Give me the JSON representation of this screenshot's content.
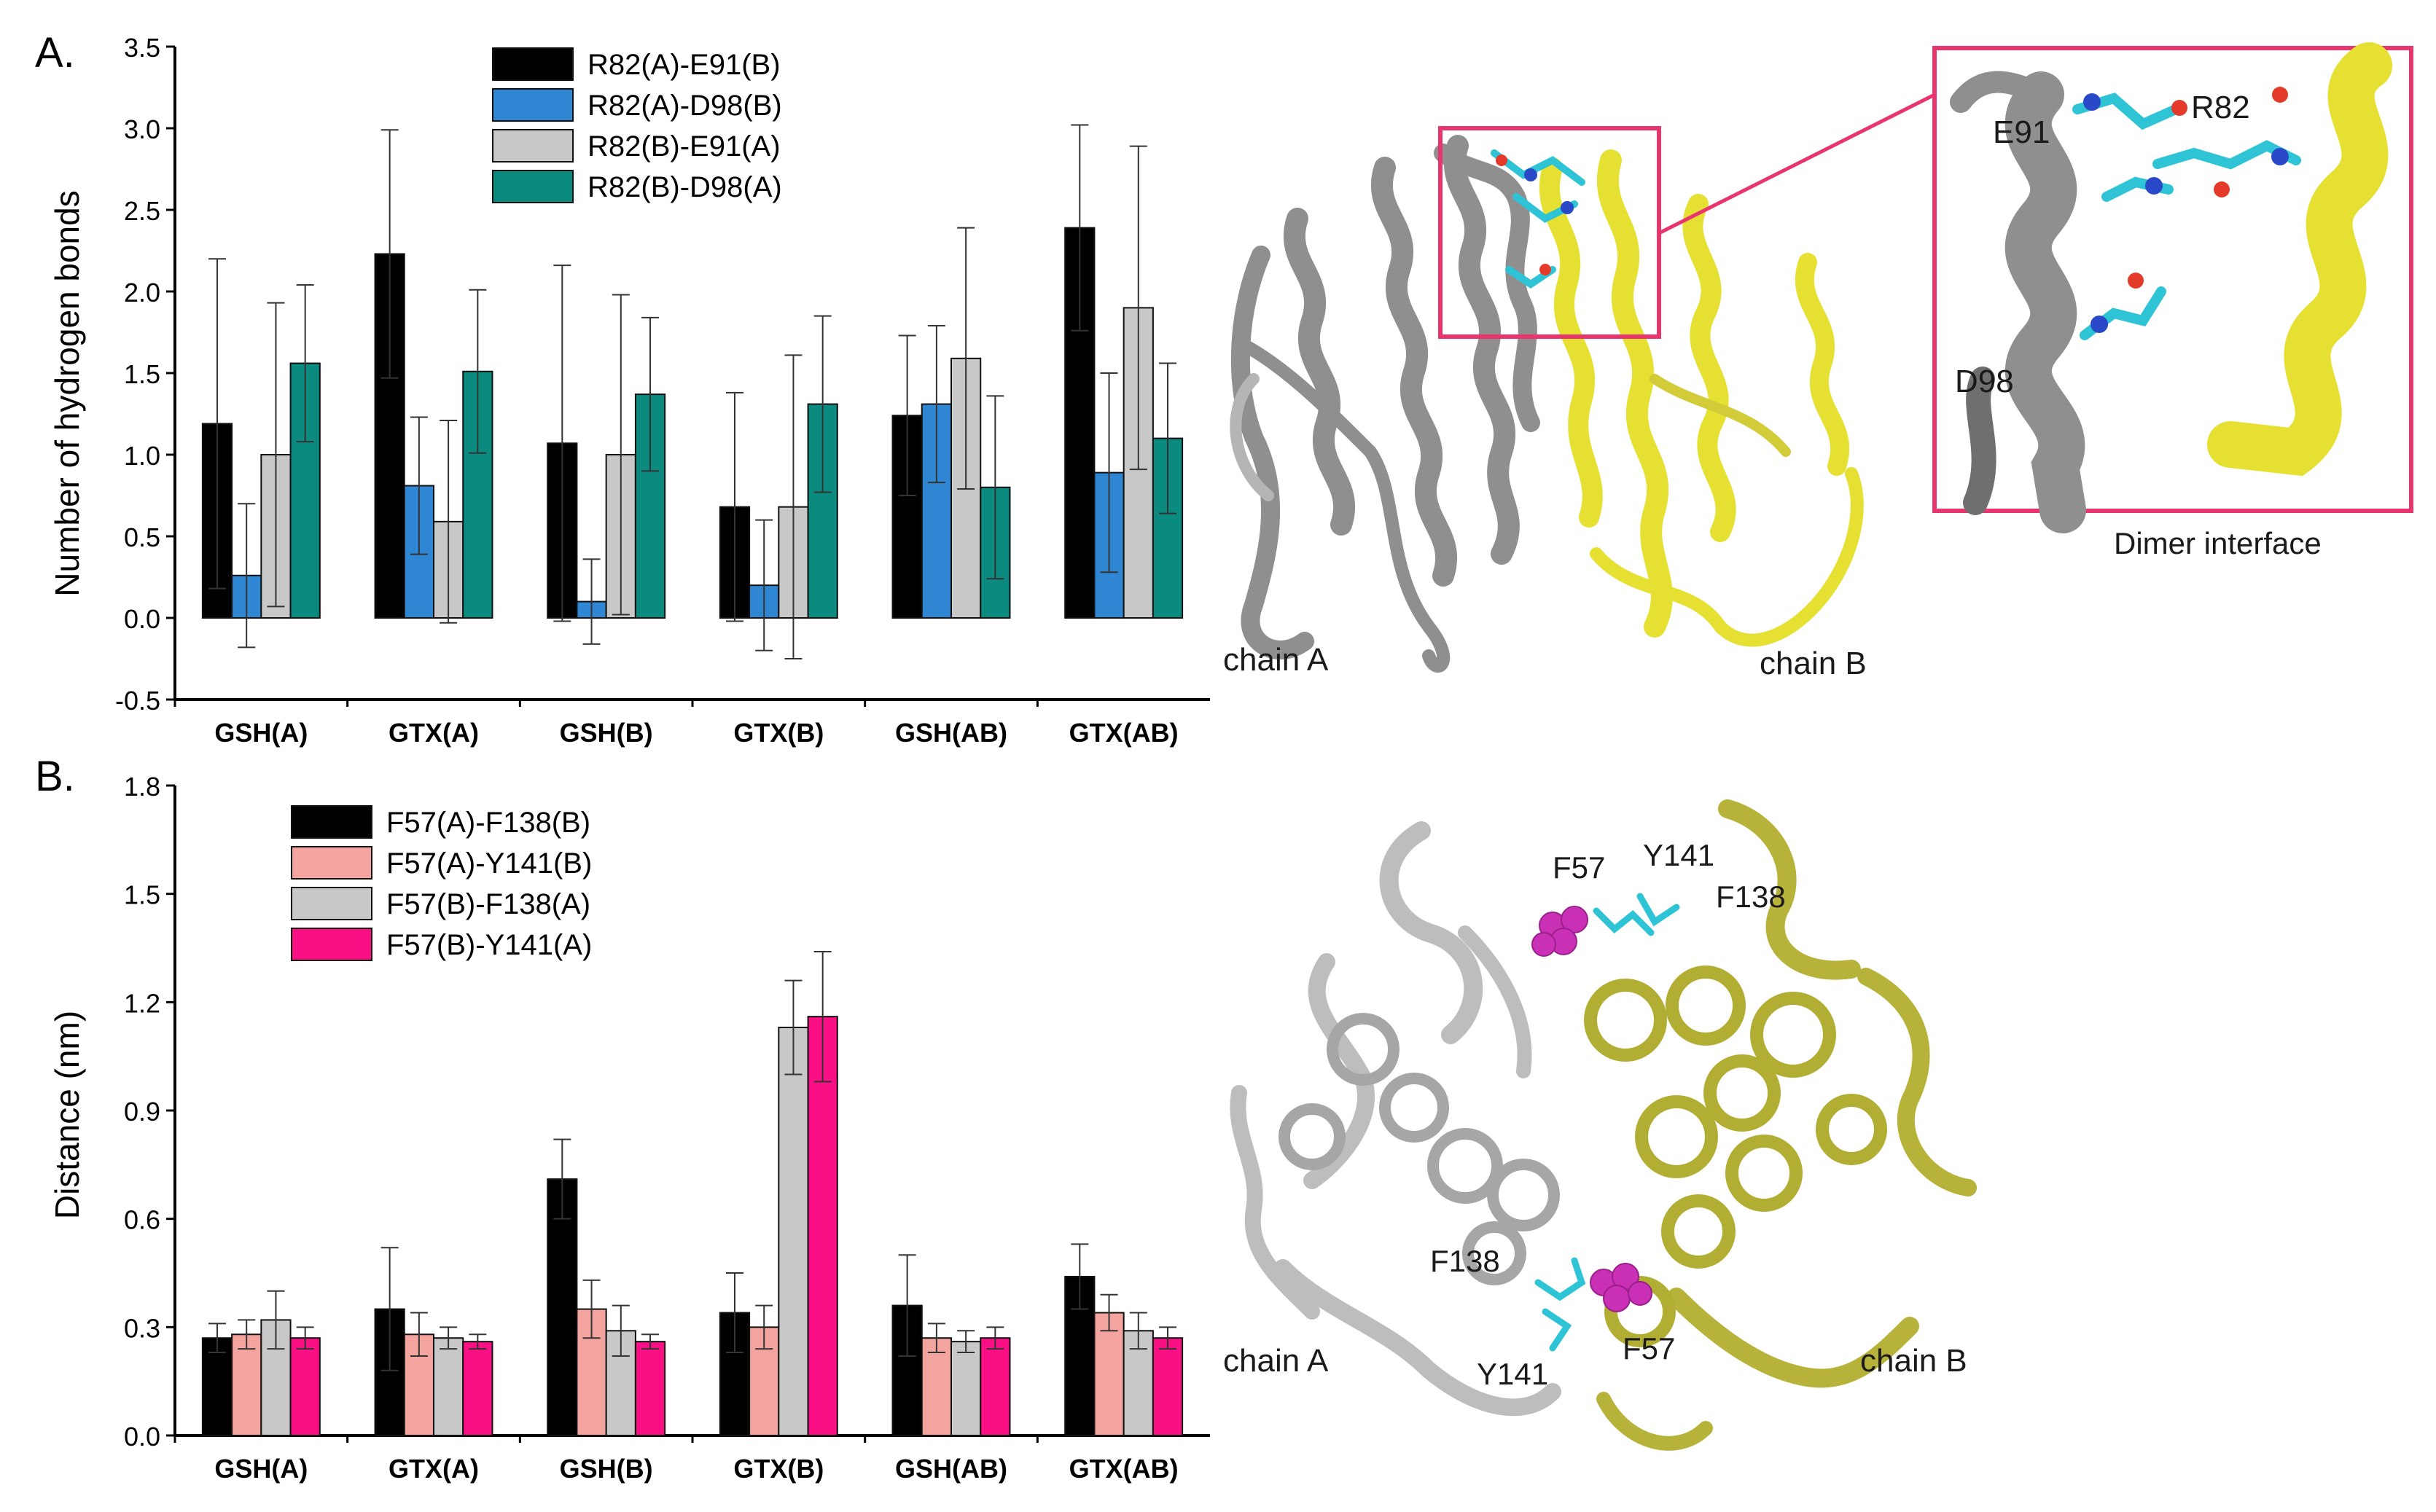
{
  "colors": {
    "panelA": [
      "#000000",
      "#2f86d3",
      "#c8c8c8",
      "#0b8a7f"
    ],
    "panelB": [
      "#000000",
      "#f4a49e",
      "#c8c8c8",
      "#fa0f84"
    ],
    "chainA": "#8f8f8f",
    "chainA_light": "#c9c9c9",
    "chainB": "#e6e032",
    "chainB_dark": "#b7b33a",
    "highlight_box": "#e8356e",
    "ligand": "#2ec4d6",
    "ligand_sphere": "#c930b5"
  },
  "chart_data": [
    {
      "type": "bar",
      "panel_label": "A.",
      "ylabel": "Number of hydrogen bonds",
      "ylim": [
        -0.5,
        3.5
      ],
      "yticks": [
        "-0.5",
        "0.0",
        "0.5",
        "1.0",
        "1.5",
        "2.0",
        "2.5",
        "3.0",
        "3.5"
      ],
      "categories": [
        "GSH(A)",
        "GTX(A)",
        "GSH(B)",
        "GTX(B)",
        "GSH(AB)",
        "GTX(AB)"
      ],
      "legend_position": "top-center",
      "series": [
        {
          "name": "R82(A)-E91(B)",
          "values": [
            1.19,
            2.23,
            1.07,
            0.68,
            1.24,
            2.39
          ],
          "errors": [
            1.01,
            0.76,
            1.09,
            0.7,
            0.49,
            0.63
          ]
        },
        {
          "name": "R82(A)-D98(B)",
          "values": [
            0.26,
            0.81,
            0.1,
            0.2,
            1.31,
            0.89
          ],
          "errors": [
            0.44,
            0.42,
            0.26,
            0.4,
            0.48,
            0.61
          ]
        },
        {
          "name": "R82(B)-E91(A)",
          "values": [
            1.0,
            0.59,
            1.0,
            0.68,
            1.59,
            1.9
          ],
          "errors": [
            0.93,
            0.62,
            0.98,
            0.93,
            0.8,
            0.99
          ]
        },
        {
          "name": "R82(B)-D98(A)",
          "values": [
            1.56,
            1.51,
            1.37,
            1.31,
            0.8,
            1.1
          ],
          "errors": [
            0.48,
            0.5,
            0.47,
            0.54,
            0.56,
            0.46
          ]
        }
      ]
    },
    {
      "type": "bar",
      "panel_label": "B.",
      "ylabel": "Distance (nm)",
      "ylim": [
        0.0,
        1.8
      ],
      "yticks": [
        "0.0",
        "0.3",
        "0.6",
        "0.9",
        "1.2",
        "1.5",
        "1.8"
      ],
      "categories": [
        "GSH(A)",
        "GTX(A)",
        "GSH(B)",
        "GTX(B)",
        "GSH(AB)",
        "GTX(AB)"
      ],
      "legend_position": "top-left",
      "series": [
        {
          "name": "F57(A)-F138(B)",
          "values": [
            0.27,
            0.35,
            0.71,
            0.34,
            0.36,
            0.44
          ],
          "errors": [
            0.04,
            0.17,
            0.11,
            0.11,
            0.14,
            0.09
          ]
        },
        {
          "name": "F57(A)-Y141(B)",
          "values": [
            0.28,
            0.28,
            0.35,
            0.3,
            0.27,
            0.34
          ],
          "errors": [
            0.04,
            0.06,
            0.08,
            0.06,
            0.04,
            0.05
          ]
        },
        {
          "name": "F57(B)-F138(A)",
          "values": [
            0.32,
            0.27,
            0.29,
            1.13,
            0.26,
            0.29
          ],
          "errors": [
            0.08,
            0.03,
            0.07,
            0.13,
            0.03,
            0.05
          ]
        },
        {
          "name": "F57(B)-Y141(A)",
          "values": [
            0.27,
            0.26,
            0.26,
            1.16,
            0.27,
            0.27
          ],
          "errors": [
            0.03,
            0.02,
            0.02,
            0.18,
            0.03,
            0.03
          ]
        }
      ]
    }
  ],
  "structures": {
    "top": {
      "chain_a_label": "chain A",
      "chain_b_label": "chain B",
      "inset_caption": "Dimer interface",
      "residues": [
        "E91",
        "R82",
        "D98"
      ]
    },
    "bottom": {
      "chain_a_label": "chain A",
      "chain_b_label": "chain B",
      "residues": [
        "F57",
        "Y141",
        "F138",
        "F138",
        "Y141",
        "F57"
      ]
    }
  }
}
